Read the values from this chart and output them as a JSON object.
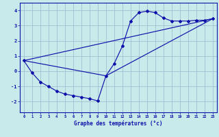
{
  "xlabel": "Graphe des températures (°c)",
  "bg_color": "#c8eaea",
  "grid_color": "#99b8cc",
  "line_color": "#1010aa",
  "xlim": [
    -0.5,
    23.5
  ],
  "ylim": [
    -2.7,
    4.5
  ],
  "xticks": [
    0,
    1,
    2,
    3,
    4,
    5,
    6,
    7,
    8,
    9,
    10,
    11,
    12,
    13,
    14,
    15,
    16,
    17,
    18,
    19,
    20,
    21,
    22,
    23
  ],
  "yticks": [
    -2,
    -1,
    0,
    1,
    2,
    3,
    4
  ],
  "main_x": [
    0,
    1,
    2,
    3,
    4,
    5,
    6,
    7,
    8,
    9,
    10,
    11,
    12,
    13,
    14,
    15,
    16,
    17,
    18,
    19,
    20,
    21,
    22,
    23
  ],
  "main_y": [
    0.7,
    -0.1,
    -0.7,
    -1.0,
    -1.3,
    -1.5,
    -1.6,
    -1.7,
    -1.8,
    -1.95,
    -0.3,
    0.5,
    1.65,
    3.3,
    3.85,
    3.95,
    3.85,
    3.5,
    3.3,
    3.3,
    3.3,
    3.35,
    3.35,
    3.45
  ],
  "line1_x": [
    0,
    23
  ],
  "line1_y": [
    0.7,
    3.45
  ],
  "line2_x": [
    0,
    10,
    23
  ],
  "line2_y": [
    0.7,
    -0.3,
    3.45
  ]
}
